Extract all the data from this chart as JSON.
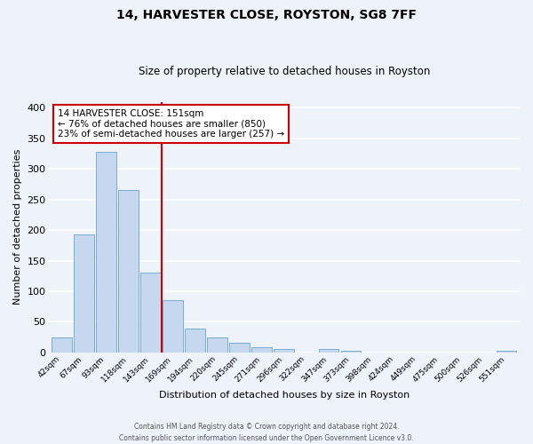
{
  "title": "14, HARVESTER CLOSE, ROYSTON, SG8 7FF",
  "subtitle": "Size of property relative to detached houses in Royston",
  "xlabel": "Distribution of detached houses by size in Royston",
  "ylabel": "Number of detached properties",
  "bin_labels": [
    "42sqm",
    "67sqm",
    "93sqm",
    "118sqm",
    "143sqm",
    "169sqm",
    "194sqm",
    "220sqm",
    "245sqm",
    "271sqm",
    "296sqm",
    "322sqm",
    "347sqm",
    "373sqm",
    "398sqm",
    "424sqm",
    "449sqm",
    "475sqm",
    "500sqm",
    "526sqm",
    "551sqm"
  ],
  "bar_values": [
    25,
    193,
    328,
    265,
    130,
    86,
    39,
    25,
    16,
    8,
    5,
    0,
    5,
    3,
    0,
    0,
    0,
    0,
    0,
    0,
    3
  ],
  "bar_color": "#c5d8f0",
  "bar_edge_color": "#7aadd4",
  "vline_x": 4.5,
  "vline_color": "#cc0000",
  "annotation_line1": "14 HARVESTER CLOSE: 151sqm",
  "annotation_line2": "← 76% of detached houses are smaller (850)",
  "annotation_line3": "23% of semi-detached houses are larger (257) →",
  "annotation_box_color": "#ffffff",
  "annotation_box_edge": "#cc0000",
  "ylim": [
    0,
    410
  ],
  "yticks": [
    0,
    50,
    100,
    150,
    200,
    250,
    300,
    350,
    400
  ],
  "background_color": "#eef2f9",
  "grid_color": "#ffffff",
  "footer": "Contains HM Land Registry data © Crown copyright and database right 2024.\nContains public sector information licensed under the Open Government Licence v3.0."
}
